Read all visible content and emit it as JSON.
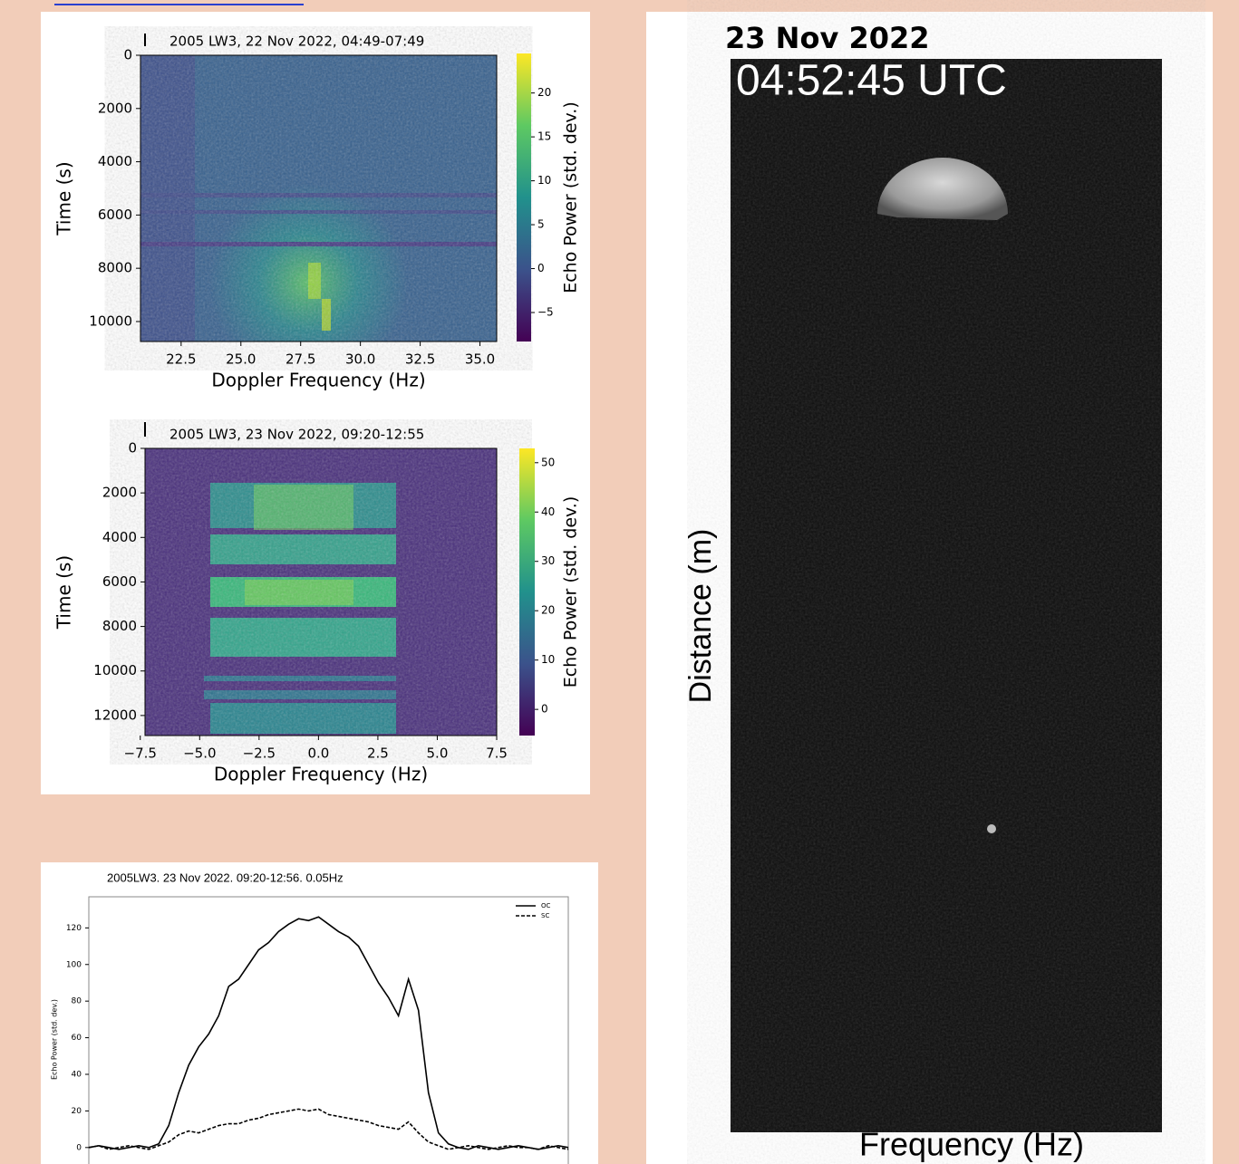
{
  "chart_data": [
    {
      "type": "heatmap",
      "title": "2005 LW3, 22 Nov 2022, 04:49-07:49",
      "xlabel": "Doppler Frequency (Hz)",
      "ylabel": "Time (s)",
      "colorbar_label": "Echo Power (std. dev.)",
      "xlim": [
        20.8,
        35.7
      ],
      "xticks": [
        22.5,
        {
          "value": 25,
          "label": "25.0"
        },
        27.5,
        {
          "value": 30,
          "label": "30.0"
        },
        32.5,
        {
          "value": 35,
          "label": "35.0"
        }
      ],
      "ylim": [
        0,
        10750
      ],
      "yticks": [
        0,
        2000,
        4000,
        6000,
        8000,
        10000
      ],
      "y_inverted": true,
      "clim": [
        -8.3,
        24.5
      ],
      "cticks": [
        {
          "value": -5,
          "label": "−5"
        },
        0,
        5,
        10,
        15,
        20
      ]
    },
    {
      "type": "heatmap",
      "title": "2005 LW3, 23 Nov 2022, 09:20-12:55",
      "xlabel": "Doppler Frequency (Hz)",
      "ylabel": "Time (s)",
      "colorbar_label": "Echo Power (std. dev.)",
      "xlim": [
        -7.3,
        7.5
      ],
      "xticks": [
        {
          "value": -7.5,
          "label": "−7.5"
        },
        {
          "value": -5,
          "label": "−5.0"
        },
        {
          "value": -2.5,
          "label": "−2.5"
        },
        {
          "value": 0,
          "label": "0.0"
        },
        2.5,
        {
          "value": 5,
          "label": "5.0"
        },
        7.5
      ],
      "ylim": [
        0,
        12900
      ],
      "yticks": [
        0,
        2000,
        4000,
        6000,
        8000,
        10000,
        12000
      ],
      "y_inverted": true,
      "clim": [
        -5.3,
        52.9
      ],
      "cticks": [
        0,
        10,
        20,
        30,
        40,
        50
      ]
    },
    {
      "type": "line",
      "title": "2005LW3. 23 Nov 2022. 09:20-12:56. 0.05Hz",
      "ylabel": "Echo Power (std. dev.)",
      "ylim": [
        -9,
        137
      ],
      "yticks": [
        0,
        20,
        40,
        60,
        80,
        100,
        120
      ],
      "legend": "upper right",
      "series": [
        {
          "name": "OC",
          "color": "#000000",
          "dash": "solid",
          "values": [
            0,
            1,
            0,
            -1,
            0,
            1,
            0,
            2,
            12,
            30,
            45,
            55,
            62,
            72,
            88,
            92,
            100,
            108,
            112,
            118,
            122,
            125,
            124,
            126,
            122,
            118,
            115,
            110,
            100,
            90,
            82,
            72,
            92,
            75,
            30,
            8,
            2,
            0,
            -1,
            1,
            0,
            -1,
            0,
            1,
            0,
            -1,
            0,
            1,
            0
          ]
        },
        {
          "name": "SC",
          "color": "#000000",
          "dash": "dashed",
          "values": [
            0,
            1,
            -1,
            0,
            1,
            0,
            -1,
            1,
            3,
            7,
            9,
            8,
            10,
            12,
            13,
            13,
            15,
            16,
            18,
            19,
            20,
            21,
            20,
            21,
            18,
            17,
            16,
            15,
            14,
            12,
            11,
            10,
            14,
            8,
            3,
            1,
            -1,
            0,
            1,
            0,
            -1,
            0,
            1,
            0,
            0,
            -1,
            1,
            0,
            -1
          ]
        }
      ]
    }
  ],
  "image": {
    "date": "23 Nov 2022",
    "time": "04:52:45 UTC",
    "ylabel": "Distance (m)",
    "xlabel": "Frequency (Hz)"
  }
}
